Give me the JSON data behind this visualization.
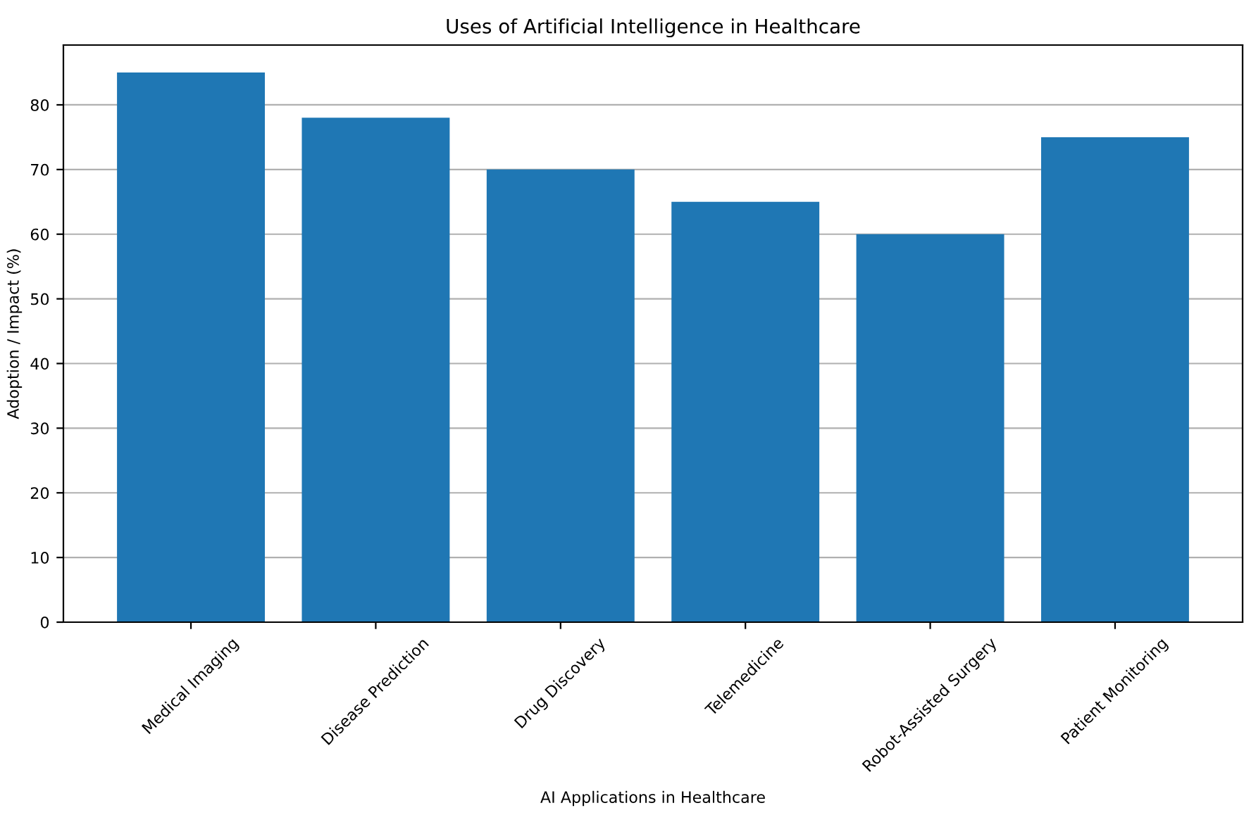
{
  "chart_data": {
    "type": "bar",
    "title": "Uses of Artificial Intelligence in Healthcare",
    "xlabel": "AI Applications in Healthcare",
    "ylabel": "Adoption / Impact (%)",
    "categories": [
      "Medical Imaging",
      "Disease Prediction",
      "Drug Discovery",
      "Telemedicine",
      "Robot-Assisted Surgery",
      "Patient Monitoring"
    ],
    "values": [
      85,
      78,
      70,
      65,
      60,
      75
    ],
    "color": "#1f77b4",
    "ylim": [
      0,
      89.25
    ],
    "yticks": [
      0,
      10,
      20,
      30,
      40,
      50,
      60,
      70,
      80
    ],
    "grid": "y"
  }
}
